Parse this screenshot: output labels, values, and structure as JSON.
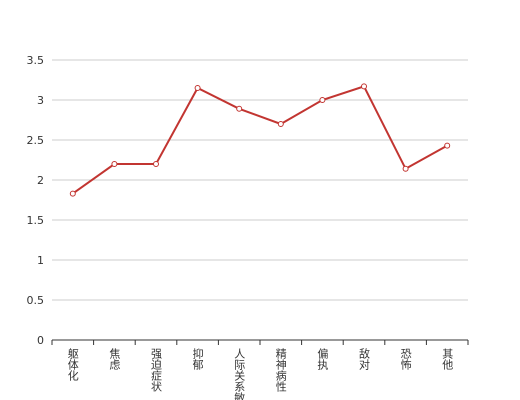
{
  "chart_data": {
    "type": "line",
    "categories": [
      "躯体化",
      "焦虑",
      "强迫症状",
      "抑郁",
      "人际关系敏感",
      "精神病性",
      "偏执",
      "敌对",
      "恐怖",
      "其他"
    ],
    "values": [
      1.83,
      2.2,
      2.2,
      3.15,
      2.89,
      2.7,
      3.0,
      3.17,
      2.14,
      2.43
    ],
    "color": "#c23531",
    "ylim": [
      0,
      3.5
    ],
    "yticks": [
      0,
      0.5,
      1,
      1.5,
      2,
      2.5,
      3,
      3.5
    ],
    "grid": true
  }
}
